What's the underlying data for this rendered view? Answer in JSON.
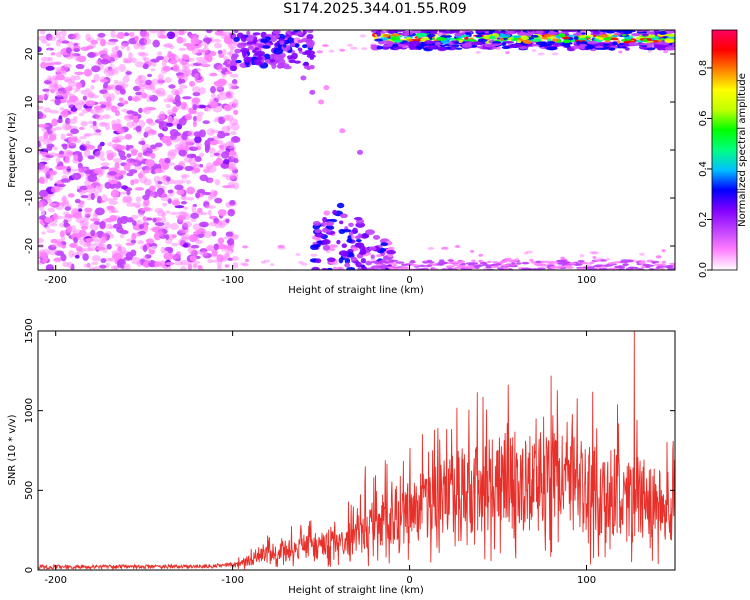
{
  "title": "S174.2025.344.01.55.R09",
  "spectrogram": {
    "type": "heatmap",
    "xlabel": "Height of straight line (km)",
    "ylabel": "Frequency (Hz)",
    "xlim": [
      -210,
      150
    ],
    "ylim": [
      -25,
      25
    ],
    "xticks": [
      -200,
      -100,
      0,
      100
    ],
    "yticks": [
      -20,
      -10,
      0,
      10,
      20
    ],
    "colorbar": {
      "label": "Normalized spectral amplitude",
      "range": [
        0,
        0.95
      ],
      "ticks": [
        "0.0",
        "0.2",
        "0.4",
        "0.6",
        "0.8"
      ],
      "ticks_values": [
        0,
        0.2,
        0.4,
        0.6,
        0.8
      ],
      "colormap": [
        "#ffffff",
        "#ff80ff",
        "#c040ff",
        "#8000ff",
        "#0000ff",
        "#00c0ff",
        "#00ff80",
        "#00ff00",
        "#c0ff00",
        "#ffff00",
        "#ff8000",
        "#ff0000",
        "#ff0060"
      ]
    }
  },
  "chart_data": {
    "type": "line",
    "title": "",
    "xlabel": "Height of straight line (km)",
    "ylabel": "SNR (10 * v/v)",
    "xlim": [
      -210,
      150
    ],
    "ylim": [
      0,
      1500
    ],
    "xticks": [
      -200,
      -100,
      0,
      100
    ],
    "yticks": [
      0,
      500,
      1000,
      1500
    ],
    "color": "#e8302a",
    "series": [
      {
        "x": [
          -210,
          -190,
          -170,
          -150,
          -130,
          -110,
          -100,
          -90,
          -80,
          -70,
          -60,
          -50,
          -40,
          -30,
          -20,
          -10,
          0,
          10,
          20,
          30,
          40,
          50,
          60,
          70,
          80,
          90,
          100,
          110,
          120,
          130,
          140,
          150
        ],
        "values": [
          20,
          20,
          20,
          20,
          20,
          25,
          35,
          80,
          130,
          150,
          180,
          190,
          240,
          280,
          350,
          420,
          480,
          520,
          570,
          620,
          650,
          680,
          700,
          700,
          690,
          680,
          650,
          620,
          600,
          580,
          520,
          480
        ]
      }
    ],
    "peaks": [
      {
        "x": 127,
        "y": 1500
      },
      {
        "x": 80,
        "y": 1220
      },
      {
        "x": -25,
        "y": 650
      }
    ]
  }
}
